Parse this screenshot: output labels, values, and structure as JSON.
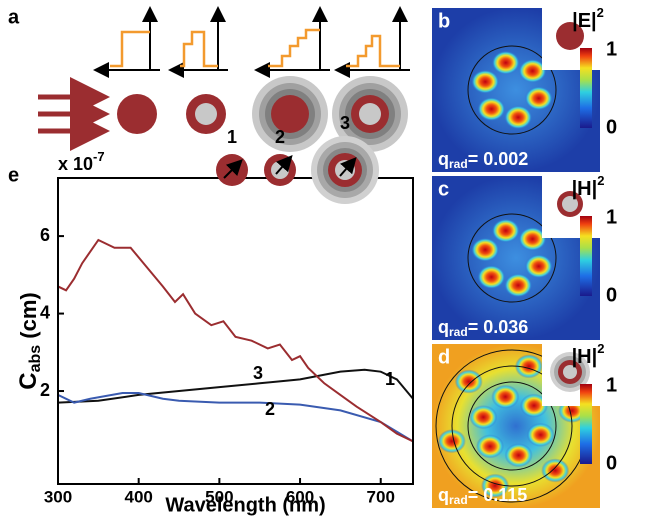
{
  "chart_data": {
    "type": "line",
    "scale_label": "x 10",
    "scale_exp": "-7",
    "xlabel": "Wavelength (nm)",
    "ylabel": "C",
    "ylabel_sub": "abs",
    "ylabel_unit": " (cm)",
    "xlim": [
      300,
      740
    ],
    "ylim": [
      -0.4,
      7.5
    ],
    "xticks": [
      300,
      400,
      500,
      600,
      700
    ],
    "yticks": [
      2,
      4,
      6
    ],
    "series": [
      {
        "name": "1",
        "color": "#111111",
        "x": [
          300,
          350,
          400,
          450,
          500,
          550,
          600,
          650,
          680,
          700,
          720,
          740
        ],
        "values": [
          1.7,
          1.75,
          1.9,
          2.0,
          2.1,
          2.2,
          2.3,
          2.5,
          2.55,
          2.5,
          2.3,
          1.8
        ]
      },
      {
        "name": "2",
        "color": "#3a5bb0",
        "x": [
          300,
          320,
          340,
          380,
          400,
          430,
          450,
          500,
          550,
          600,
          650,
          700,
          740
        ],
        "values": [
          1.9,
          1.7,
          1.8,
          1.95,
          1.95,
          1.8,
          1.75,
          1.7,
          1.7,
          1.65,
          1.5,
          1.2,
          0.7
        ]
      },
      {
        "name": "3",
        "color": "#9b2d30",
        "x": [
          300,
          310,
          320,
          330,
          350,
          370,
          390,
          410,
          430,
          445,
          455,
          470,
          490,
          505,
          520,
          540,
          560,
          575,
          590,
          600,
          610,
          630,
          650,
          670,
          700,
          720,
          740
        ],
        "values": [
          4.7,
          4.6,
          4.9,
          5.3,
          5.9,
          5.7,
          5.7,
          5.2,
          4.7,
          4.3,
          4.5,
          4.0,
          3.7,
          3.8,
          3.4,
          3.3,
          3.1,
          3.2,
          2.8,
          2.9,
          2.6,
          2.2,
          1.9,
          1.6,
          1.2,
          0.9,
          0.7
        ]
      }
    ]
  },
  "panel_labels": {
    "a": "a",
    "e": "e"
  },
  "maps": [
    {
      "label": "b",
      "field": "|E|",
      "power": "2",
      "cbar_max": "1",
      "cbar_min": "0",
      "q": "q",
      "q_sub": "rad",
      "q_value": "= 0.002"
    },
    {
      "label": "c",
      "field": "|H|",
      "power": "2",
      "cbar_max": "1",
      "cbar_min": "0",
      "q": "q",
      "q_sub": "rad",
      "q_value": "= 0.036"
    },
    {
      "label": "d",
      "field": "|H|",
      "power": "2",
      "cbar_max": "1",
      "cbar_min": "0",
      "q": "q",
      "q_sub": "rad",
      "q_value": "= 0.115"
    }
  ]
}
